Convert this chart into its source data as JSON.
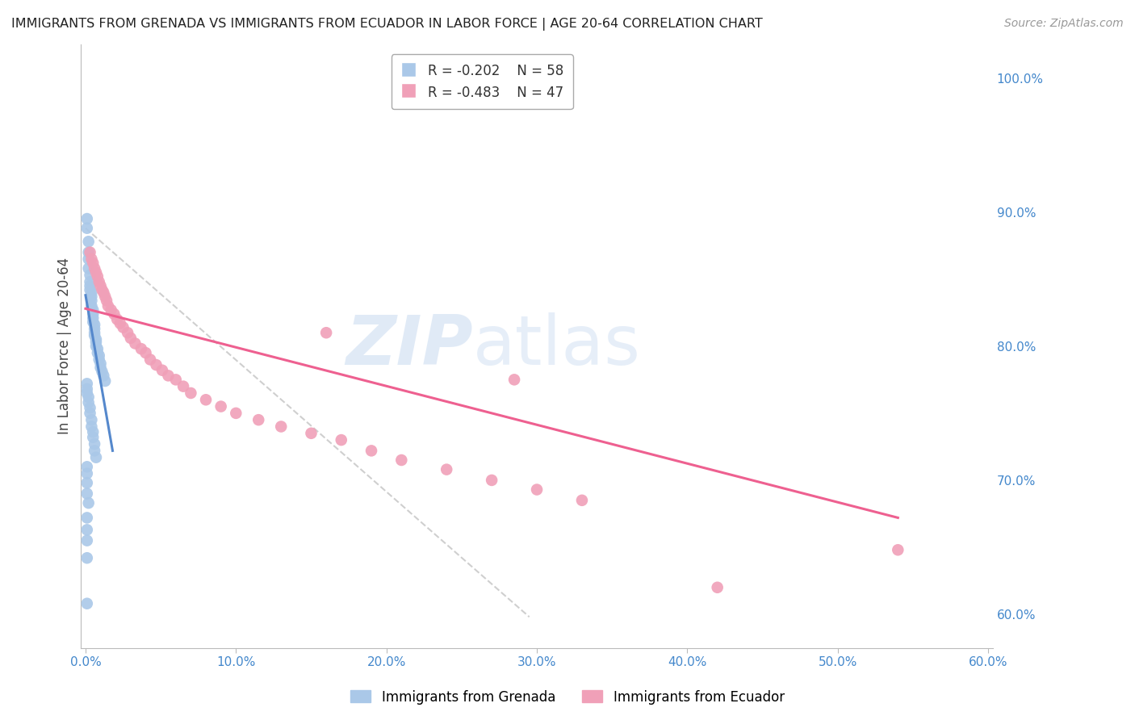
{
  "title": "IMMIGRANTS FROM GRENADA VS IMMIGRANTS FROM ECUADOR IN LABOR FORCE | AGE 20-64 CORRELATION CHART",
  "source": "Source: ZipAtlas.com",
  "ylabel_left": "In Labor Force | Age 20-64",
  "x_tick_labels": [
    "0.0%",
    "10.0%",
    "20.0%",
    "30.0%",
    "40.0%",
    "50.0%",
    "60.0%"
  ],
  "y_tick_labels_right": [
    "60.0%",
    "70.0%",
    "80.0%",
    "90.0%",
    "100.0%"
  ],
  "x_lim": [
    -0.003,
    0.603
  ],
  "y_lim": [
    0.575,
    1.025
  ],
  "y_ticks_right": [
    0.6,
    0.7,
    0.8,
    0.9,
    1.0
  ],
  "x_ticks": [
    0.0,
    0.1,
    0.2,
    0.3,
    0.4,
    0.5,
    0.6
  ],
  "grenada_color": "#aac8e8",
  "ecuador_color": "#f0a0b8",
  "grenada_line_color": "#5588cc",
  "ecuador_line_color": "#ee6090",
  "legend_r_grenada": "R = -0.202",
  "legend_n_grenada": "N = 58",
  "legend_r_ecuador": "R = -0.483",
  "legend_n_ecuador": "N = 47",
  "legend_label_grenada": "Immigrants from Grenada",
  "legend_label_ecuador": "Immigrants from Ecuador",
  "watermark_zip": "ZIP",
  "watermark_atlas": "atlas",
  "background_color": "#ffffff",
  "grid_color": "#cccccc",
  "title_color": "#222222",
  "axis_label_color": "#444444",
  "right_axis_tick_color": "#4488cc",
  "bottom_axis_tick_color": "#4488cc",
  "grenada_scatter": [
    [
      0.001,
      0.895
    ],
    [
      0.001,
      0.888
    ],
    [
      0.002,
      0.878
    ],
    [
      0.002,
      0.87
    ],
    [
      0.002,
      0.865
    ],
    [
      0.002,
      0.858
    ],
    [
      0.003,
      0.853
    ],
    [
      0.003,
      0.848
    ],
    [
      0.003,
      0.845
    ],
    [
      0.003,
      0.842
    ],
    [
      0.004,
      0.84
    ],
    [
      0.004,
      0.837
    ],
    [
      0.004,
      0.834
    ],
    [
      0.004,
      0.83
    ],
    [
      0.005,
      0.827
    ],
    [
      0.005,
      0.824
    ],
    [
      0.005,
      0.821
    ],
    [
      0.005,
      0.818
    ],
    [
      0.006,
      0.816
    ],
    [
      0.006,
      0.813
    ],
    [
      0.006,
      0.81
    ],
    [
      0.006,
      0.808
    ],
    [
      0.007,
      0.805
    ],
    [
      0.007,
      0.803
    ],
    [
      0.007,
      0.8
    ],
    [
      0.008,
      0.798
    ],
    [
      0.008,
      0.795
    ],
    [
      0.009,
      0.793
    ],
    [
      0.009,
      0.79
    ],
    [
      0.01,
      0.787
    ],
    [
      0.01,
      0.784
    ],
    [
      0.011,
      0.781
    ],
    [
      0.012,
      0.778
    ],
    [
      0.013,
      0.774
    ],
    [
      0.001,
      0.772
    ],
    [
      0.001,
      0.768
    ],
    [
      0.001,
      0.765
    ],
    [
      0.002,
      0.762
    ],
    [
      0.002,
      0.758
    ],
    [
      0.003,
      0.754
    ],
    [
      0.003,
      0.75
    ],
    [
      0.004,
      0.745
    ],
    [
      0.004,
      0.74
    ],
    [
      0.005,
      0.736
    ],
    [
      0.005,
      0.732
    ],
    [
      0.006,
      0.727
    ],
    [
      0.006,
      0.722
    ],
    [
      0.007,
      0.717
    ],
    [
      0.001,
      0.71
    ],
    [
      0.001,
      0.705
    ],
    [
      0.001,
      0.698
    ],
    [
      0.001,
      0.69
    ],
    [
      0.002,
      0.683
    ],
    [
      0.001,
      0.672
    ],
    [
      0.001,
      0.663
    ],
    [
      0.001,
      0.655
    ],
    [
      0.001,
      0.642
    ],
    [
      0.001,
      0.608
    ]
  ],
  "ecuador_scatter": [
    [
      0.003,
      0.87
    ],
    [
      0.004,
      0.865
    ],
    [
      0.005,
      0.862
    ],
    [
      0.006,
      0.858
    ],
    [
      0.007,
      0.855
    ],
    [
      0.008,
      0.852
    ],
    [
      0.009,
      0.848
    ],
    [
      0.01,
      0.845
    ],
    [
      0.011,
      0.842
    ],
    [
      0.012,
      0.84
    ],
    [
      0.013,
      0.837
    ],
    [
      0.014,
      0.834
    ],
    [
      0.015,
      0.83
    ],
    [
      0.017,
      0.827
    ],
    [
      0.019,
      0.824
    ],
    [
      0.021,
      0.82
    ],
    [
      0.023,
      0.817
    ],
    [
      0.025,
      0.814
    ],
    [
      0.028,
      0.81
    ],
    [
      0.03,
      0.806
    ],
    [
      0.033,
      0.802
    ],
    [
      0.037,
      0.798
    ],
    [
      0.04,
      0.795
    ],
    [
      0.043,
      0.79
    ],
    [
      0.047,
      0.786
    ],
    [
      0.051,
      0.782
    ],
    [
      0.055,
      0.778
    ],
    [
      0.06,
      0.775
    ],
    [
      0.065,
      0.77
    ],
    [
      0.07,
      0.765
    ],
    [
      0.08,
      0.76
    ],
    [
      0.09,
      0.755
    ],
    [
      0.1,
      0.75
    ],
    [
      0.115,
      0.745
    ],
    [
      0.13,
      0.74
    ],
    [
      0.15,
      0.735
    ],
    [
      0.17,
      0.73
    ],
    [
      0.19,
      0.722
    ],
    [
      0.21,
      0.715
    ],
    [
      0.24,
      0.708
    ],
    [
      0.27,
      0.7
    ],
    [
      0.3,
      0.693
    ],
    [
      0.33,
      0.685
    ],
    [
      0.16,
      0.81
    ],
    [
      0.285,
      0.775
    ],
    [
      0.54,
      0.648
    ],
    [
      0.42,
      0.62
    ]
  ],
  "grenada_trendline": [
    [
      0.0,
      0.838
    ],
    [
      0.018,
      0.722
    ]
  ],
  "ecuador_trendline": [
    [
      0.0,
      0.828
    ],
    [
      0.54,
      0.672
    ]
  ],
  "reference_line": [
    [
      0.0,
      0.888
    ],
    [
      0.295,
      0.598
    ]
  ]
}
